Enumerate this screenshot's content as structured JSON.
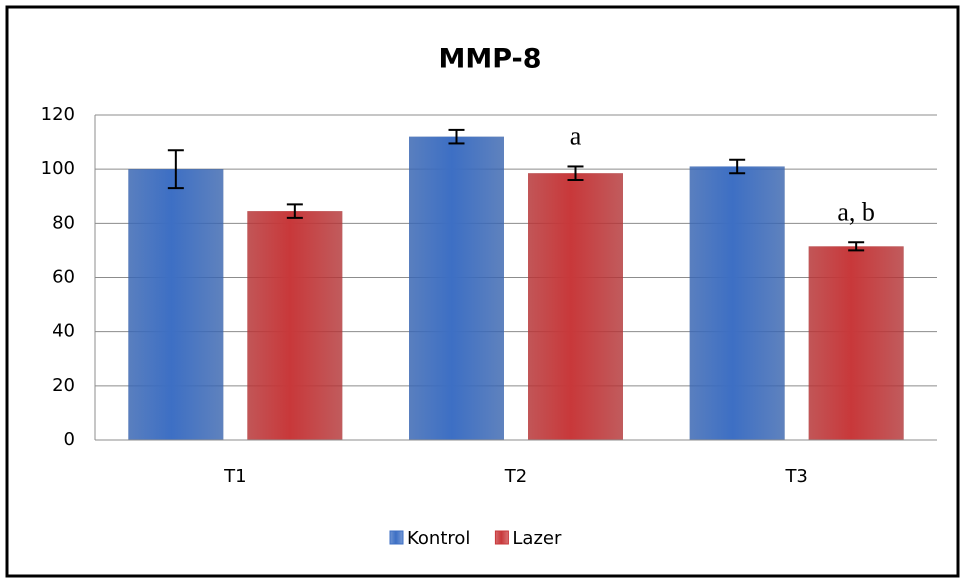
{
  "chart_data": {
    "type": "bar",
    "title": "MMP-8",
    "categories": [
      "T1",
      "T2",
      "T3"
    ],
    "series": [
      {
        "name": "Kontrol",
        "color": "#3d6fc4",
        "values": [
          100,
          112,
          101
        ],
        "errors": [
          7,
          2.5,
          2.5
        ],
        "labels": [
          null,
          null,
          null
        ]
      },
      {
        "name": "Lazer",
        "color": "#c8383a",
        "values": [
          84.5,
          98.5,
          71.5
        ],
        "errors": [
          2.5,
          2.5,
          1.5
        ],
        "labels": [
          null,
          "a",
          "a, b"
        ]
      }
    ],
    "ylim": [
      0,
      120
    ],
    "yticks": [
      0,
      20,
      40,
      60,
      80,
      100,
      120
    ],
    "grid": true,
    "legend": "bottom"
  }
}
